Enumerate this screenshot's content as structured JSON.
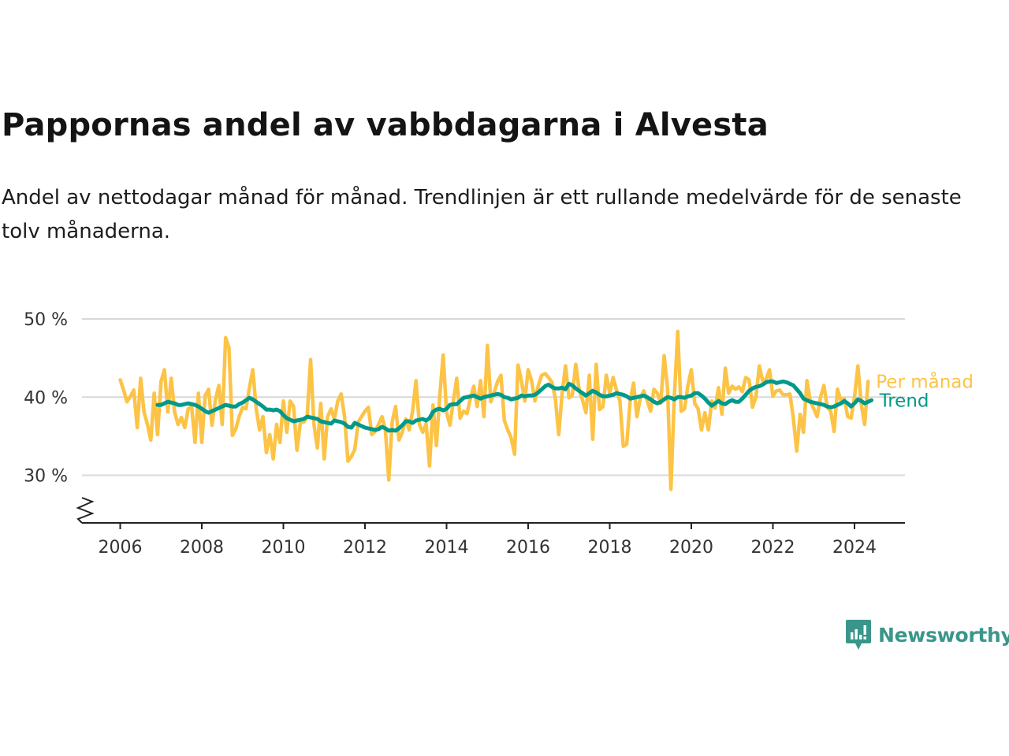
{
  "title": "Pappornas andel av vabbdagarna i Alvesta",
  "subtitle": "Andel av nettodagar månad för månad. Trendlinjen är ett rullande medelvärde för de senaste tolv månaderna.",
  "brand": {
    "name": "Newsworthy",
    "color": "#3a968a",
    "icon": "newsworthy-logo-icon"
  },
  "colors": {
    "monthly": "#fcc346",
    "trend": "#00998a",
    "grid": "#d9d9d9",
    "axis": "#222222"
  },
  "chart_data": {
    "type": "line",
    "x_ticks": [
      "2006",
      "2008",
      "2010",
      "2012",
      "2014",
      "2016",
      "2018",
      "2020",
      "2022",
      "2024"
    ],
    "y_ticks": [
      {
        "value": 30,
        "label": "30 %"
      },
      {
        "value": 40,
        "label": "40 %"
      },
      {
        "value": 50,
        "label": "50 %"
      }
    ],
    "ylim": [
      24,
      51
    ],
    "xlim": [
      2005.0,
      2025.4
    ],
    "y_axis_break": true,
    "grid": true,
    "legend": "line-end labels",
    "series": [
      {
        "name": "Per månad",
        "color": "#fcc346",
        "start": "2006-01",
        "values": [
          42.2,
          40.9,
          39.4,
          40.1,
          40.9,
          36.1,
          42.4,
          38.1,
          36.5,
          34.5,
          40.5,
          35.2,
          42.0,
          43.5,
          38.1,
          42.4,
          38.1,
          36.5,
          37.4,
          36.1,
          38.5,
          38.8,
          34.2,
          40.5,
          34.2,
          40.2,
          41.0,
          36.4,
          39.6,
          41.5,
          36.5,
          47.6,
          46.3,
          35.1,
          35.9,
          37.5,
          38.7,
          38.5,
          41.2,
          43.5,
          38.5,
          35.8,
          37.5,
          32.9,
          35.2,
          32.1,
          36.5,
          34.2,
          39.5,
          35.5,
          39.5,
          38.8,
          33.2,
          36.8,
          36.8,
          37.5,
          44.8,
          36.5,
          33.5,
          39.2,
          32.1,
          37.5,
          38.5,
          37.2,
          39.5,
          40.4,
          37.5,
          31.8,
          32.4,
          33.3,
          36.8,
          37.5,
          38.2,
          38.7,
          35.2,
          35.6,
          36.5,
          37.5,
          35.8,
          29.4,
          36.8,
          38.8,
          34.5,
          35.5,
          37.2,
          35.8,
          38.2,
          42.1,
          36.5,
          35.5,
          36.6,
          31.2,
          39.0,
          33.8,
          40.2,
          45.4,
          38.0,
          36.4,
          39.5,
          42.4,
          37.3,
          38.2,
          37.9,
          39.8,
          41.4,
          38.8,
          42.1,
          37.5,
          46.6,
          39.4,
          40.6,
          42.0,
          42.8,
          37.0,
          35.8,
          34.8,
          32.7,
          44.1,
          42.1,
          39.5,
          43.5,
          42.1,
          39.5,
          41.5,
          42.8,
          43.0,
          42.5,
          41.9,
          39.8,
          35.2,
          40.5,
          44.0,
          39.9,
          40.3,
          44.2,
          40.9,
          39.6,
          38.0,
          42.8,
          34.6,
          44.2,
          38.4,
          38.8,
          42.8,
          40.5,
          42.5,
          40.9,
          39.5,
          33.7,
          34.0,
          39.5,
          41.8,
          37.5,
          39.9,
          40.8,
          39.6,
          38.2,
          41.0,
          40.5,
          39.2,
          45.3,
          41.2,
          28.2,
          40.0,
          48.4,
          38.2,
          38.5,
          41.5,
          43.5,
          39.2,
          38.5,
          35.8,
          38.0,
          35.8,
          39.5,
          38.6,
          41.2,
          37.8,
          43.7,
          40.5,
          41.4,
          41.0,
          41.3,
          40.7,
          42.5,
          42.2,
          38.7,
          40.0,
          44.0,
          42.0,
          42.3,
          43.5,
          40.1,
          40.8,
          40.9,
          40.3,
          40.3,
          40.4,
          37.3,
          33.1,
          37.8,
          35.5,
          42.1,
          39.5,
          38.5,
          37.5,
          40.0,
          41.5,
          38.7,
          38.2,
          35.6,
          41.0,
          39.5,
          39.8,
          37.5,
          37.3,
          40.0,
          44.0,
          39.1,
          36.5,
          42.0
        ]
      },
      {
        "name": "Trend",
        "color": "#00998a",
        "start": "2006-12",
        "values": [
          39.0,
          39.0,
          39.2,
          39.4,
          39.3,
          39.2,
          39.0,
          39.0,
          39.1,
          39.2,
          39.1,
          39.0,
          38.8,
          38.5,
          38.2,
          38.0,
          38.2,
          38.4,
          38.6,
          38.8,
          39.0,
          38.9,
          38.8,
          38.8,
          39.1,
          39.3,
          39.6,
          39.9,
          39.7,
          39.4,
          39.1,
          38.8,
          38.4,
          38.4,
          38.3,
          38.4,
          38.2,
          37.7,
          37.3,
          37.1,
          36.9,
          37.0,
          37.1,
          37.2,
          37.5,
          37.4,
          37.3,
          37.2,
          36.9,
          36.8,
          36.7,
          36.6,
          37.0,
          36.9,
          36.8,
          36.6,
          36.2,
          36.1,
          36.7,
          36.5,
          36.3,
          36.1,
          36.0,
          35.9,
          35.8,
          35.9,
          36.2,
          36.0,
          35.7,
          35.8,
          35.7,
          36.0,
          36.4,
          36.9,
          36.9,
          36.7,
          37.0,
          37.1,
          37.2,
          37.0,
          37.3,
          38.1,
          38.4,
          38.5,
          38.3,
          38.5,
          39.0,
          39.1,
          39.1,
          39.5,
          39.9,
          40.0,
          40.1,
          40.2,
          40.0,
          39.8,
          40.0,
          40.1,
          40.2,
          40.3,
          40.4,
          40.3,
          40.0,
          39.9,
          39.7,
          39.8,
          39.9,
          40.2,
          40.1,
          40.2,
          40.2,
          40.3,
          40.6,
          41.0,
          41.4,
          41.6,
          41.3,
          41.1,
          41.1,
          41.2,
          41.0,
          41.7,
          41.5,
          41.1,
          40.8,
          40.5,
          40.2,
          40.5,
          40.8,
          40.6,
          40.3,
          40.1,
          40.1,
          40.2,
          40.3,
          40.5,
          40.4,
          40.3,
          40.1,
          39.8,
          39.9,
          40.0,
          40.1,
          40.2,
          40.0,
          39.7,
          39.4,
          39.2,
          39.4,
          39.7,
          40.0,
          39.9,
          39.7,
          40.0,
          40.0,
          39.9,
          40.1,
          40.2,
          40.5,
          40.5,
          40.2,
          39.8,
          39.3,
          38.9,
          39.2,
          39.5,
          39.2,
          39.1,
          39.4,
          39.6,
          39.4,
          39.4,
          39.8,
          40.3,
          40.8,
          41.1,
          41.3,
          41.4,
          41.6,
          41.9,
          42.0,
          42.0,
          41.8,
          41.9,
          42.0,
          41.9,
          41.7,
          41.5,
          41.0,
          40.5,
          39.8,
          39.6,
          39.4,
          39.3,
          39.2,
          39.1,
          39.0,
          38.8,
          38.7,
          38.8,
          39.0,
          39.2,
          39.5,
          39.2,
          38.8,
          39.2,
          39.7,
          39.5,
          39.2,
          39.4,
          39.6
        ]
      }
    ]
  }
}
